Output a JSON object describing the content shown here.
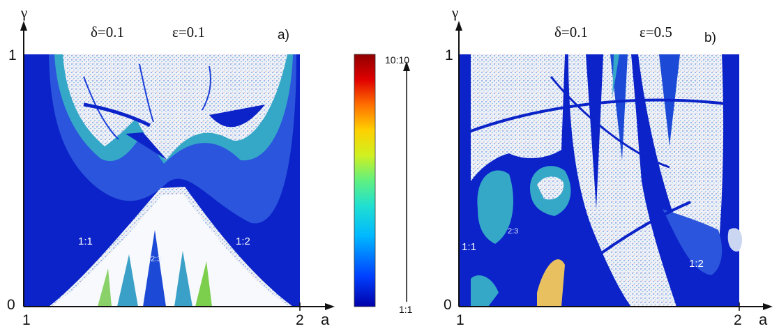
{
  "panel_a": {
    "tag": "a)",
    "y_axis": "γ",
    "x_axis": "a",
    "delta": "δ=0.1",
    "epsilon": "ε=0.1",
    "y_ticks": [
      "0",
      "1"
    ],
    "x_ticks": [
      "1",
      "2"
    ],
    "regions": [
      "1:1",
      "1:2",
      "2:3"
    ]
  },
  "panel_b": {
    "tag": "b)",
    "y_axis": "γ",
    "x_axis": "a",
    "delta": "δ=0.1",
    "epsilon": "ε=0.5",
    "y_ticks": [
      "0",
      "1"
    ],
    "x_ticks": [
      "1",
      "2"
    ],
    "regions": [
      "1:1",
      "2:3",
      "1:2"
    ]
  },
  "colorbar": {
    "top_label": "10:10",
    "bottom_label": "1:1",
    "colors": [
      "#0000a8",
      "#0040ff",
      "#00b8ff",
      "#20e0d0",
      "#60f080",
      "#d0f020",
      "#ffd000",
      "#ff7000",
      "#e00000",
      "#900000"
    ]
  },
  "colors": {
    "background_blue": "#0b23c8",
    "mid_blue": "#1f4ad8",
    "teal": "#2aa6c0",
    "light_blue": "#3f77e0",
    "speckle": "#e9eef6"
  }
}
